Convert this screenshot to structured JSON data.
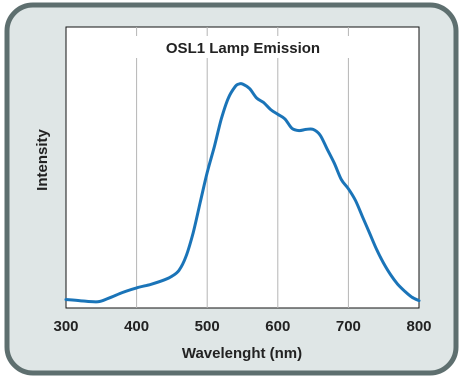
{
  "chart_data": {
    "type": "line",
    "title": "OSL1 Lamp Emission",
    "xlabel": "Wavelenght (nm)",
    "ylabel": "Intensity",
    "xlim": [
      300,
      800
    ],
    "xticks": [
      300,
      400,
      500,
      600,
      700,
      800
    ],
    "ylim": [
      0,
      1
    ],
    "grid": "vertical",
    "colors": {
      "frame_fill": "#dfe6e6",
      "frame_stroke": "#5e6f6f",
      "line": "#1a74b8",
      "grid": "#b5b5b5",
      "text": "#222222"
    },
    "series": [
      {
        "x": [
          300,
          320,
          345,
          360,
          380,
          400,
          420,
          440,
          450,
          460,
          470,
          480,
          490,
          500,
          510,
          520,
          530,
          540,
          545,
          550,
          560,
          570,
          580,
          590,
          600,
          610,
          620,
          630,
          640,
          650,
          660,
          670,
          680,
          690,
          700,
          710,
          720,
          730,
          740,
          750,
          760,
          770,
          780,
          790,
          800
        ],
        "y": [
          0.015,
          0.01,
          0.005,
          0.02,
          0.045,
          0.065,
          0.08,
          0.1,
          0.115,
          0.14,
          0.2,
          0.3,
          0.43,
          0.56,
          0.67,
          0.79,
          0.88,
          0.93,
          0.94,
          0.94,
          0.92,
          0.88,
          0.86,
          0.83,
          0.81,
          0.79,
          0.75,
          0.74,
          0.745,
          0.745,
          0.72,
          0.66,
          0.6,
          0.53,
          0.49,
          0.44,
          0.37,
          0.3,
          0.23,
          0.17,
          0.12,
          0.08,
          0.05,
          0.025,
          0.01
        ]
      }
    ]
  }
}
